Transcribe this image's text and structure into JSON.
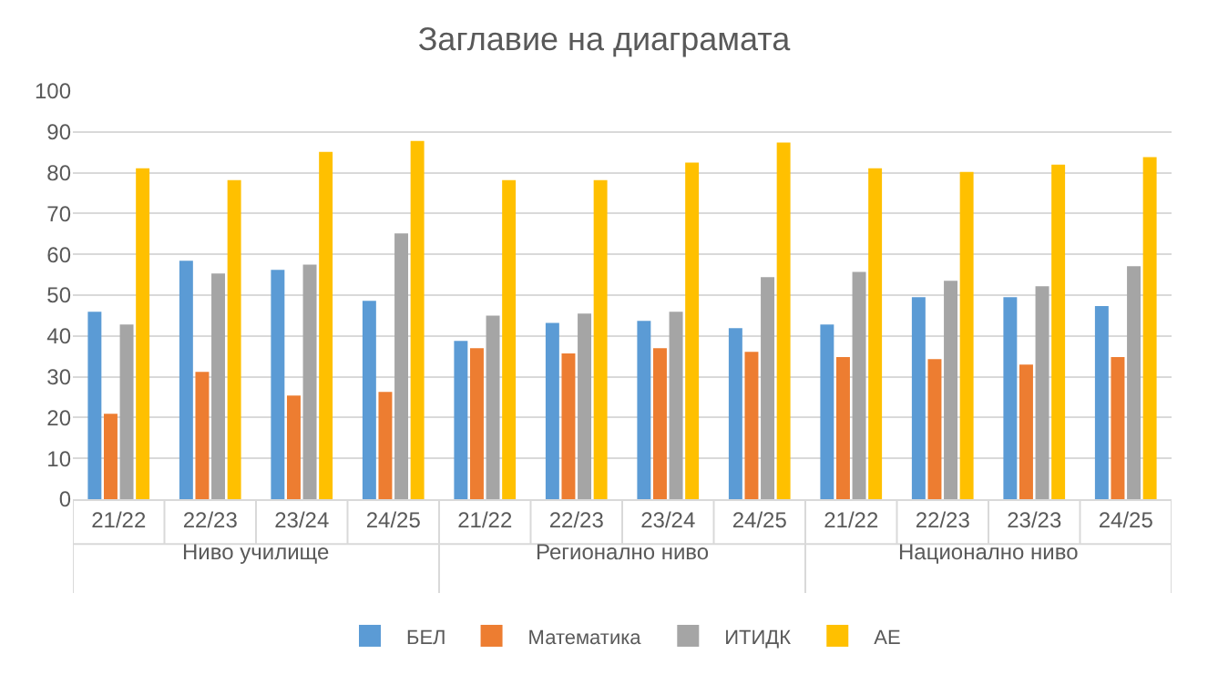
{
  "chart_data": {
    "type": "bar",
    "title": "Заглавие на диаграмата",
    "categories": [
      "21/22",
      "22/23",
      "23/24",
      "24/25",
      "21/22",
      "22/23",
      "23/24",
      "24/25",
      "21/22",
      "22/23",
      "23/23",
      "24/25"
    ],
    "series": [
      {
        "name": "БЕЛ",
        "color": "#5b9bd5",
        "values": [
          45.9,
          58.4,
          56.2,
          48.6,
          38.8,
          43.2,
          43.7,
          41.9,
          42.8,
          49.5,
          49.5,
          47.3
        ]
      },
      {
        "name": "Математика",
        "color": "#ed7d31",
        "values": [
          20.9,
          31.2,
          25.4,
          26.3,
          37.0,
          35.7,
          37.0,
          36.1,
          34.8,
          34.3,
          33.0,
          34.8
        ]
      },
      {
        "name": "ИТИДК",
        "color": "#a5a5a5",
        "values": [
          42.8,
          55.3,
          57.5,
          65.1,
          45.0,
          45.5,
          45.9,
          54.4,
          55.7,
          53.5,
          52.2,
          57.1
        ]
      },
      {
        "name": "АЕ",
        "color": "#ffc000",
        "values": [
          81.1,
          78.2,
          85.1,
          87.8,
          78.2,
          78.2,
          82.5,
          87.4,
          81.1,
          80.2,
          82.0,
          83.8
        ]
      }
    ],
    "annotations": [
      "Ниво училище",
      "Регионално ниво",
      "Национално ниво"
    ],
    "ylim": [
      0,
      100
    ],
    "yticks": [
      0,
      10,
      20,
      30,
      40,
      50,
      60,
      70,
      80,
      90,
      100
    ],
    "grid": "y",
    "legend": "bottom"
  }
}
